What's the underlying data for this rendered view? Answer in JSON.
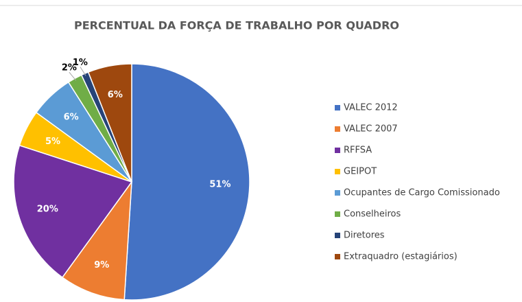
{
  "chart_data": {
    "type": "pie",
    "title": "PERCENTUAL DA FORÇA DE TRABALHO POR QUADRO",
    "categories": [
      "VALEC 2012",
      "VALEC 2007",
      "RFFSA",
      "GEIPOT",
      "Ocupantes de Cargo Comissionado",
      "Conselheiros",
      "Diretores",
      "Extraquadro (estagiários)"
    ],
    "values": [
      51,
      9,
      20,
      5,
      6,
      2,
      1,
      6
    ],
    "value_labels": [
      "51%",
      "9%",
      "20%",
      "5%",
      "6%",
      "2%",
      "1%",
      "6%"
    ],
    "colors": [
      "#4472c4",
      "#ed7d31",
      "#7030a0",
      "#ffc000",
      "#5b9bd5",
      "#70ad47",
      "#264478",
      "#9e480e"
    ],
    "legend": "right"
  }
}
